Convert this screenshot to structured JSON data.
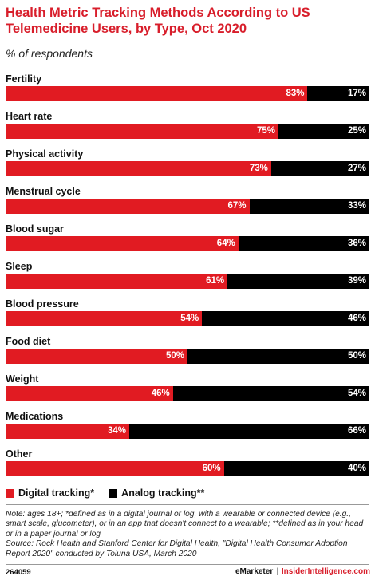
{
  "header": {
    "title": "Health Metric Tracking Methods According to US Telemedicine Users, by Type, Oct 2020",
    "subtitle": "% of respondents"
  },
  "chart_data": {
    "type": "bar",
    "orientation": "horizontal",
    "stacked": true,
    "stack_total": 100,
    "categories": [
      "Fertility",
      "Heart rate",
      "Physical activity",
      "Menstrual cycle",
      "Blood sugar",
      "Sleep",
      "Blood pressure",
      "Food diet",
      "Weight",
      "Medications",
      "Other"
    ],
    "series": [
      {
        "name": "Digital tracking*",
        "values": [
          83,
          75,
          73,
          67,
          64,
          61,
          54,
          50,
          46,
          34,
          60
        ],
        "color": "#e11b22"
      },
      {
        "name": "Analog tracking**",
        "values": [
          17,
          25,
          27,
          33,
          36,
          39,
          46,
          50,
          54,
          66,
          40
        ],
        "color": "#000000"
      }
    ],
    "value_suffix": "%",
    "legend_position": "bottom-left",
    "grid": false
  },
  "note": "Note: ages 18+; *defined as in a digital journal or log, with a wearable or connected device (e.g., smart scale, glucometer), or in an app that doesn't connect to a wearable; **defined as in your head or in a paper journal or log",
  "source": "Source: Rock Health and Stanford Center for Digital Health, \"Digital Health Consumer Adoption Report 2020\" conducted by Toluna USA, March 2020",
  "footer": {
    "chart_id": "264059",
    "brand": "eMarketer",
    "separator": "|",
    "site": "InsiderIntelligence.com"
  }
}
